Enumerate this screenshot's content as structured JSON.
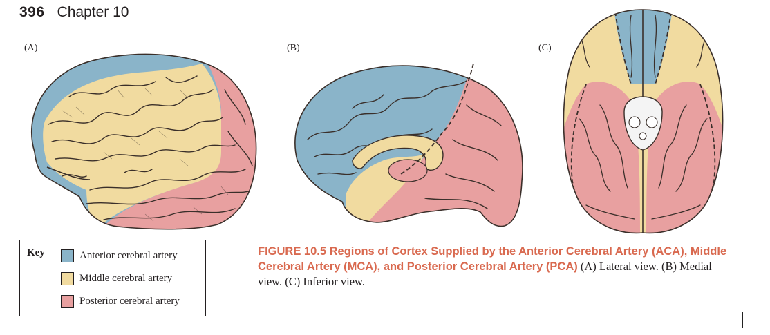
{
  "header": {
    "page_number": "396",
    "chapter": "Chapter 10"
  },
  "panels": [
    {
      "label": "(A)",
      "view": "Lateral"
    },
    {
      "label": "(B)",
      "view": "Medial"
    },
    {
      "label": "(C)",
      "view": "Inferior"
    }
  ],
  "key": {
    "title": "Key",
    "items": [
      {
        "label": "Anterior cerebral artery",
        "color": "#8ab4c9"
      },
      {
        "label": "Middle cerebral artery",
        "color": "#f1dba0"
      },
      {
        "label": "Posterior cerebral artery",
        "color": "#e8a0a0"
      }
    ]
  },
  "caption": {
    "figure_title": "FIGURE 10.5  Regions of Cortex Supplied by the Anterior Cerebral Artery (ACA), Middle Cerebral Artery (MCA), and Posterior Cerebral Artery (PCA)",
    "body": " (A) Lateral view. (B) Medial view. (C) Inferior view."
  },
  "colors": {
    "title_accent": "#d9694f",
    "anterior": "#8ab4c9",
    "middle": "#f1dba0",
    "posterior": "#e8a0a0",
    "gyrus_line": "#3a2f2a"
  }
}
